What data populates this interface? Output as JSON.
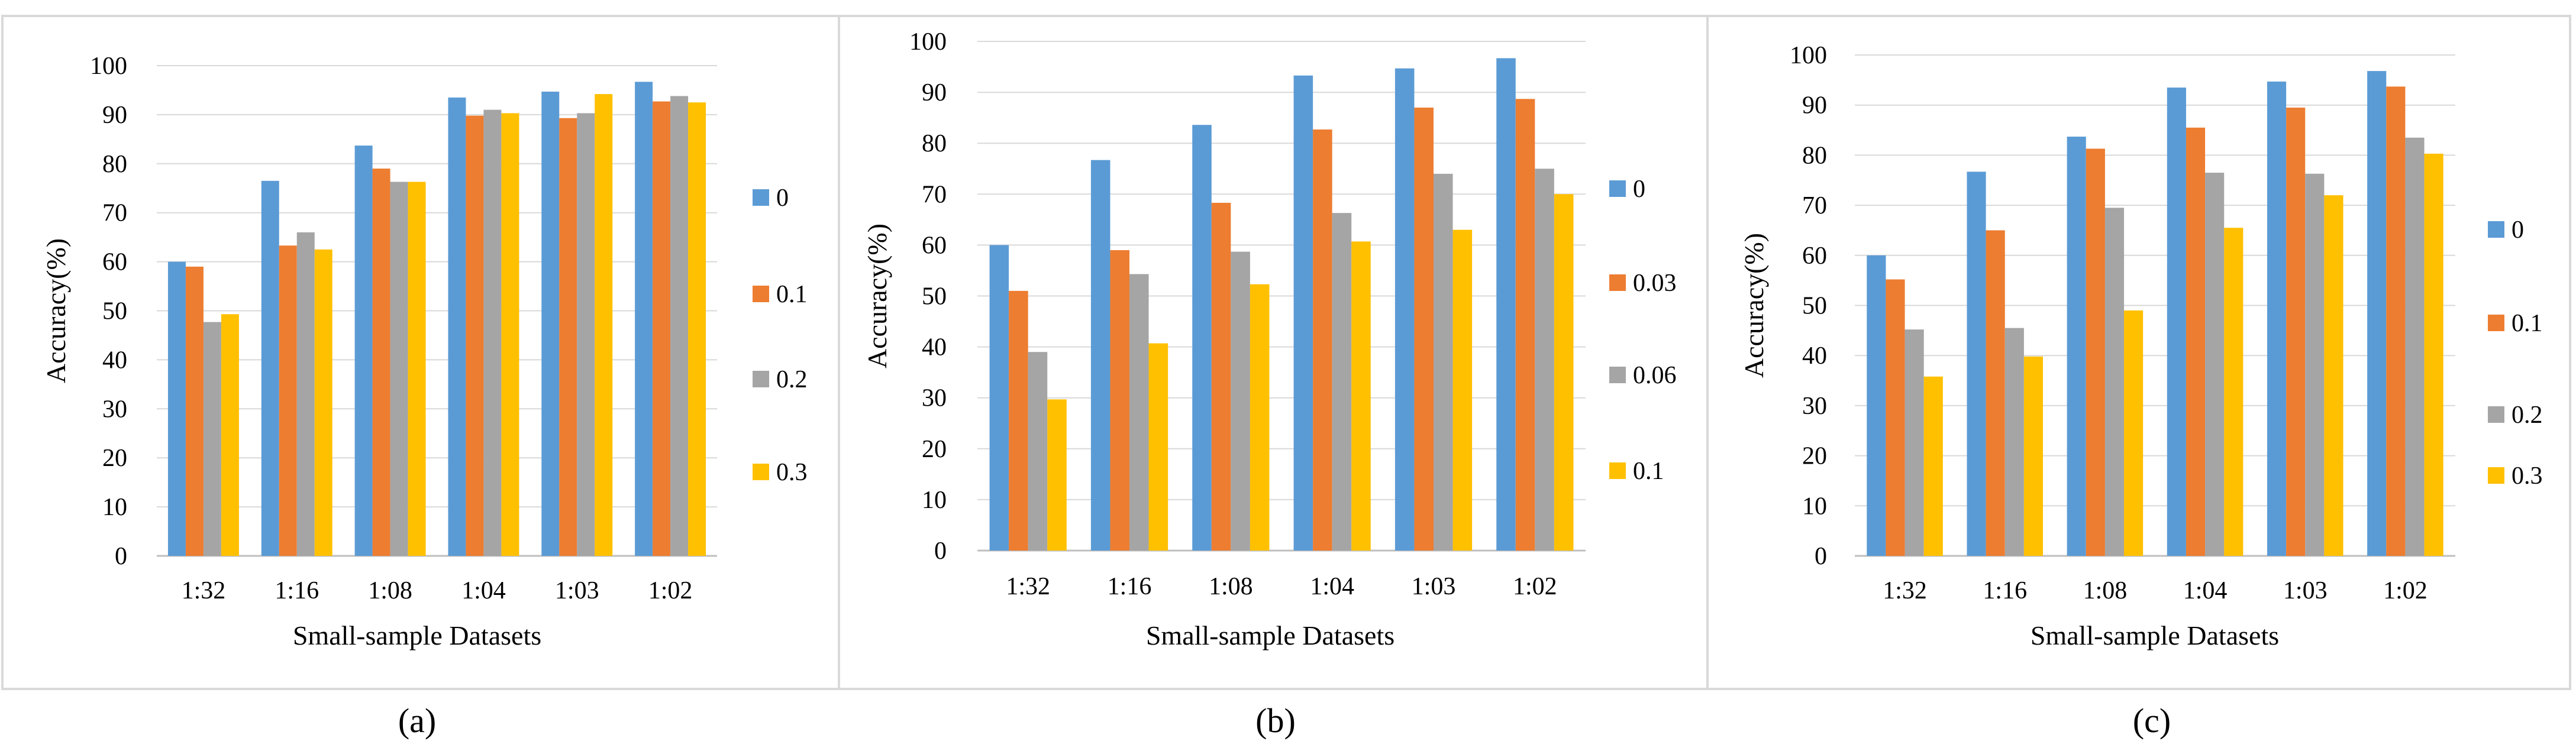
{
  "colors": [
    "#5B9BD5",
    "#ED7D31",
    "#A5A5A5",
    "#FFC000"
  ],
  "chart_data": [
    {
      "type": "bar",
      "panel_label": "(a)",
      "title": "",
      "xlabel": "Small-sample Datasets",
      "ylabel": "Accuracy(%)",
      "ylim": [
        0,
        100
      ],
      "yticks": [
        "0",
        "10",
        "20",
        "30",
        "40",
        "50",
        "60",
        "70",
        "80",
        "90",
        "100"
      ],
      "grid": true,
      "legend": "right",
      "categories": [
        "1:32",
        "1:16",
        "1:08",
        "1:04",
        "1:03",
        "1:02"
      ],
      "series": [
        {
          "name": "0",
          "values": [
            60.0,
            76.5,
            83.7,
            93.5,
            94.7,
            96.7
          ]
        },
        {
          "name": "0.1",
          "values": [
            59.0,
            63.3,
            79.0,
            89.8,
            89.3,
            92.7
          ]
        },
        {
          "name": "0.2",
          "values": [
            47.7,
            66.0,
            76.3,
            91.0,
            90.3,
            93.8
          ]
        },
        {
          "name": "0.3",
          "values": [
            49.3,
            62.5,
            76.3,
            90.3,
            94.2,
            92.5
          ]
        }
      ]
    },
    {
      "type": "bar",
      "panel_label": "(b)",
      "title": "",
      "xlabel": "Small-sample Datasets",
      "ylabel": "Accuracy(%)",
      "ylim": [
        0,
        100
      ],
      "yticks": [
        "0",
        "10",
        "20",
        "30",
        "40",
        "50",
        "60",
        "70",
        "80",
        "90",
        "100"
      ],
      "grid": true,
      "legend": "right",
      "categories": [
        "1:32",
        "1:16",
        "1:08",
        "1:04",
        "1:03",
        "1:02"
      ],
      "series": [
        {
          "name": "0",
          "values": [
            60.0,
            76.7,
            83.6,
            93.3,
            94.7,
            96.7
          ]
        },
        {
          "name": "0.03",
          "values": [
            51.0,
            59.0,
            68.3,
            82.7,
            87.0,
            88.7
          ]
        },
        {
          "name": "0.06",
          "values": [
            39.0,
            54.3,
            58.7,
            66.3,
            74.0,
            75.0
          ]
        },
        {
          "name": "0.1",
          "values": [
            29.7,
            40.7,
            52.3,
            60.7,
            63.0,
            70.0
          ]
        }
      ]
    },
    {
      "type": "bar",
      "panel_label": "(c)",
      "title": "",
      "xlabel": "Small-sample Datasets",
      "ylabel": "Accuracy(%)",
      "ylim": [
        0,
        100
      ],
      "yticks": [
        "0",
        "10",
        "20",
        "30",
        "40",
        "50",
        "60",
        "70",
        "80",
        "90",
        "100"
      ],
      "grid": true,
      "legend": "right",
      "categories": [
        "1:32",
        "1:16",
        "1:08",
        "1:04",
        "1:03",
        "1:02"
      ],
      "series": [
        {
          "name": "0",
          "values": [
            60.0,
            76.7,
            83.7,
            93.5,
            94.7,
            96.8
          ]
        },
        {
          "name": "0.1",
          "values": [
            55.2,
            65.0,
            81.3,
            85.5,
            89.5,
            93.7
          ]
        },
        {
          "name": "0.2",
          "values": [
            45.2,
            45.5,
            69.5,
            76.5,
            76.3,
            83.5
          ]
        },
        {
          "name": "0.3",
          "values": [
            35.8,
            39.8,
            49.0,
            65.5,
            72.0,
            80.3
          ]
        }
      ]
    }
  ]
}
